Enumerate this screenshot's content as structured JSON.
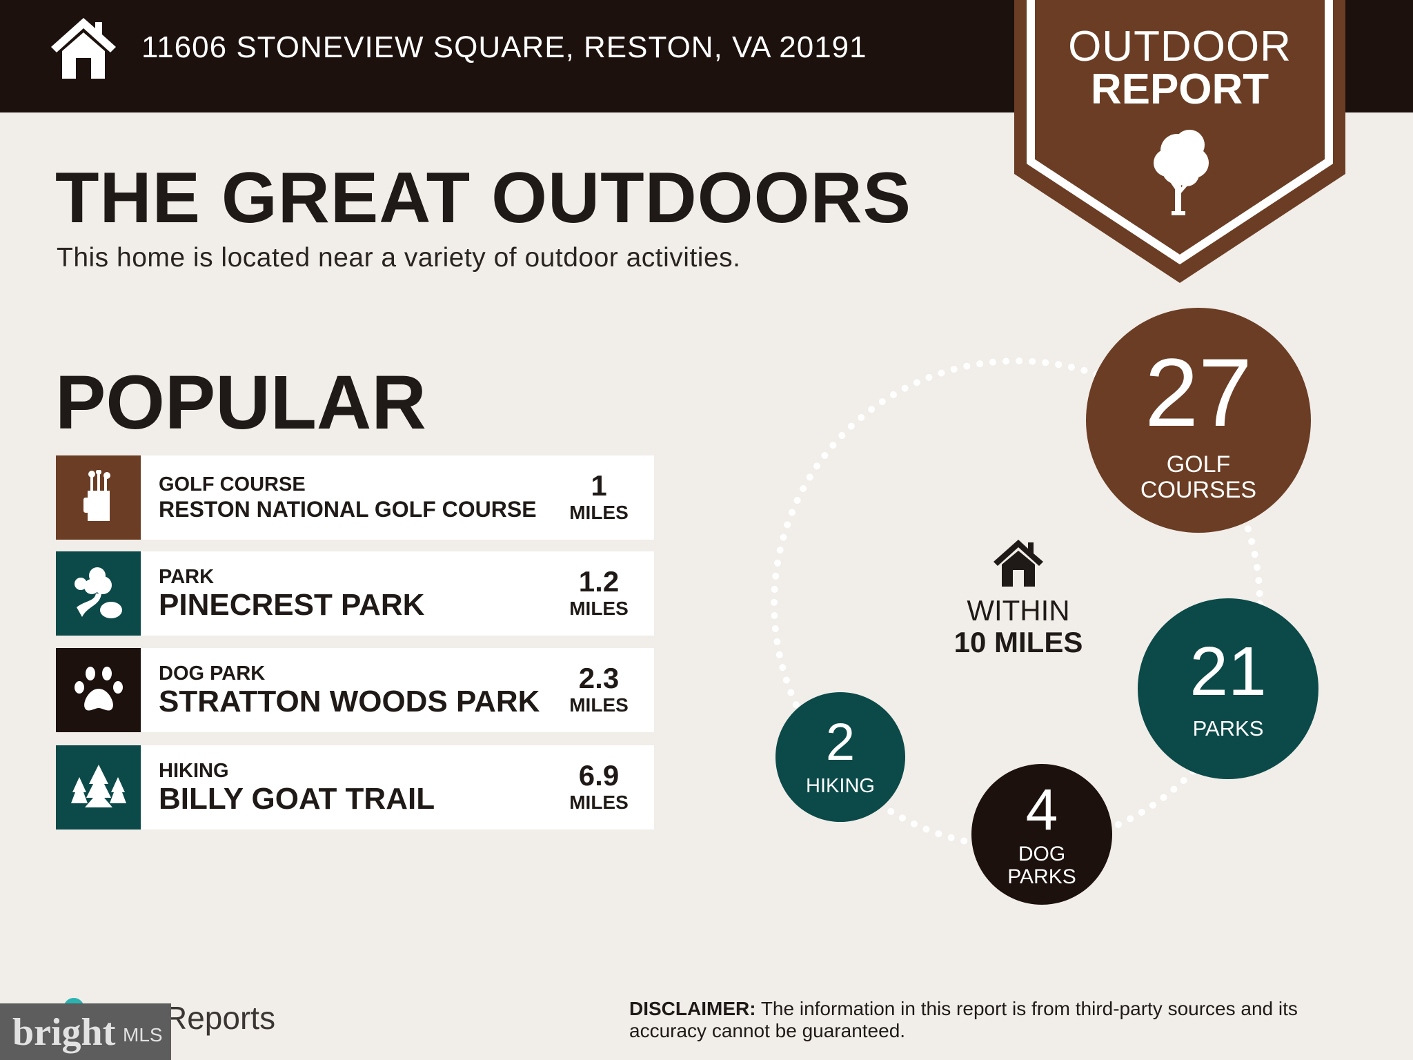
{
  "header": {
    "address": "11606 STONEVIEW SQUARE, RESTON, VA 20191",
    "icon": "home-icon"
  },
  "badge": {
    "line1": "OUTDOOR",
    "line2": "REPORT",
    "icon": "tree-icon",
    "color": "#6b3d24"
  },
  "main": {
    "title": "THE GREAT OUTDOORS",
    "subtitle": "This home is located near a variety of outdoor activities.",
    "popular_heading": "POPULAR"
  },
  "popular": [
    {
      "category": "GOLF COURSE",
      "name": "RESTON NATIONAL GOLF COURSE",
      "distance": "1",
      "unit": "MILES",
      "icon": "golf-bag-icon",
      "color": "#6b3d24"
    },
    {
      "category": "PARK",
      "name": "PINECREST PARK",
      "distance": "1.2",
      "unit": "MILES",
      "icon": "park-trees-icon",
      "color": "#0b4a48"
    },
    {
      "category": "DOG PARK",
      "name": "STRATTON WOODS PARK",
      "distance": "2.3",
      "unit": "MILES",
      "icon": "paw-icon",
      "color": "#1c110d"
    },
    {
      "category": "HIKING",
      "name": "BILLY GOAT TRAIL",
      "distance": "6.9",
      "unit": "MILES",
      "icon": "pine-trees-icon",
      "color": "#0b4a48"
    }
  ],
  "summary": {
    "within_line1": "WITHIN",
    "within_line2": "10 MILES",
    "golf": {
      "count": "27",
      "label1": "GOLF",
      "label2": "COURSES",
      "color": "#6b3d24"
    },
    "parks": {
      "count": "21",
      "label": "PARKS",
      "color": "#0b4a48"
    },
    "dog": {
      "count": "4",
      "label1": "DOG",
      "label2": "PARKS",
      "color": "#1c110d"
    },
    "hiking": {
      "count": "2",
      "label": "HIKING",
      "color": "#0b4a48"
    }
  },
  "footer": {
    "reports": "Reports",
    "bright": "bright",
    "mls": "MLS",
    "disclaimer_label": "DISCLAIMER:",
    "disclaimer_text": " The information in this report is from third-party sources and its accuracy cannot be guaranteed."
  }
}
